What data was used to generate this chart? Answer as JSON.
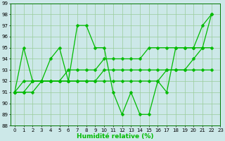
{
  "line1": [
    91,
    95,
    92,
    92,
    94,
    95,
    92,
    97,
    97,
    95,
    95,
    91,
    89,
    91,
    89,
    89,
    92,
    91,
    95,
    95,
    95,
    97,
    98
  ],
  "line2": [
    91,
    92,
    92,
    92,
    92,
    92,
    92,
    92,
    92,
    92,
    92,
    92,
    92,
    92,
    92,
    92,
    92,
    93,
    93,
    93,
    93,
    93,
    93
  ],
  "line3": [
    91,
    91,
    91,
    92,
    92,
    92,
    92,
    92,
    92,
    92,
    93,
    93,
    93,
    93,
    93,
    93,
    93,
    93,
    93,
    93,
    94,
    95,
    98
  ],
  "line4": [
    91,
    91,
    92,
    92,
    92,
    92,
    93,
    93,
    93,
    93,
    94,
    94,
    94,
    94,
    94,
    95,
    95,
    95,
    95,
    95,
    95,
    95,
    95
  ],
  "line_color": "#00bb00",
  "bg_color": "#cce8e8",
  "grid_color": "#99cc99",
  "xlabel": "Humidité relative (%)",
  "ylim": [
    88,
    99
  ],
  "xlim": [
    -0.5,
    23
  ],
  "yticks": [
    88,
    89,
    90,
    91,
    92,
    93,
    94,
    95,
    96,
    97,
    98,
    99
  ],
  "xticks": [
    0,
    1,
    2,
    3,
    4,
    5,
    6,
    7,
    8,
    9,
    10,
    11,
    12,
    13,
    14,
    15,
    16,
    17,
    18,
    19,
    20,
    21,
    22,
    23
  ],
  "markersize": 2.5,
  "linewidth": 0.9,
  "tick_fontsize": 5.0,
  "xlabel_fontsize": 6.5
}
